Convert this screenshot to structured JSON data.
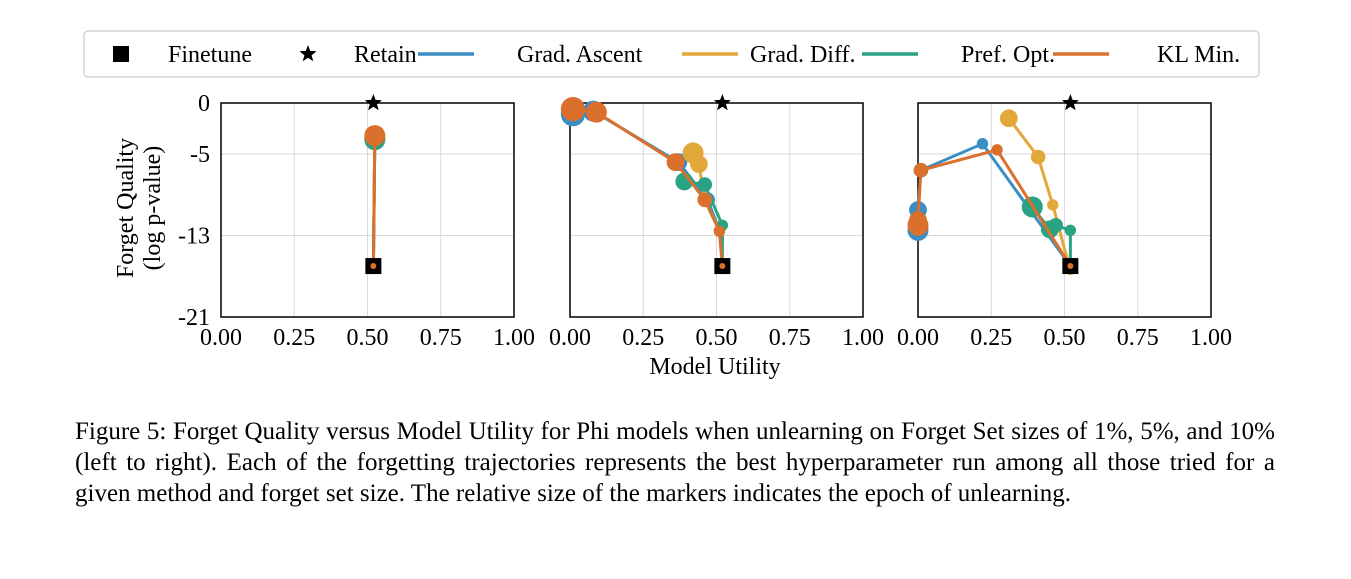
{
  "legend": [
    {
      "label": "Finetune",
      "marker": "square",
      "color": "#000000"
    },
    {
      "label": "Retain",
      "marker": "star",
      "color": "#000000"
    },
    {
      "label": "Grad. Ascent",
      "marker": "line",
      "color": "#3a8ec4"
    },
    {
      "label": "Grad. Diff.",
      "marker": "line",
      "color": "#e2a93a"
    },
    {
      "label": "Pref. Opt.",
      "marker": "line",
      "color": "#2aa382"
    },
    {
      "label": "KL Min.",
      "marker": "line",
      "color": "#db6f2c"
    }
  ],
  "axes": {
    "ylabel_line1": "Forget Quality",
    "ylabel_line2": "(log p-value)",
    "xlabel": "Model Utility",
    "xticks": [
      "0.00",
      "0.25",
      "0.50",
      "0.75",
      "1.00"
    ],
    "yticks": [
      "0",
      "-5",
      "-13",
      "-21"
    ]
  },
  "caption": "Figure 5: Forget Quality versus Model Utility for Phi models when unlearning on Forget Set sizes of 1%, 5%, and 10% (left to right). Each of the forgetting trajectories represents the best hyperparameter run among all those tried for a given method and forget set size. The relative size of the markers indicates the epoch of unlearning.",
  "chart_data": [
    {
      "type": "scatter",
      "panel": "1% forget set",
      "xlabel": "Model Utility",
      "ylabel": "Forget Quality (log p-value)",
      "xlim": [
        0,
        1
      ],
      "ylim": [
        -21,
        0
      ],
      "grid": true,
      "finetune": {
        "x": 0.52,
        "y": -16
      },
      "retain": {
        "x": 0.52,
        "y": 0
      },
      "series": [
        {
          "name": "Grad. Ascent",
          "points": [
            {
              "x": 0.52,
              "y": -16,
              "epoch": 1
            },
            {
              "x": 0.525,
              "y": -3.5,
              "epoch": 5
            }
          ]
        },
        {
          "name": "Grad. Diff.",
          "points": [
            {
              "x": 0.52,
              "y": -16,
              "epoch": 1
            },
            {
              "x": 0.525,
              "y": -3.5,
              "epoch": 5
            }
          ]
        },
        {
          "name": "Pref. Opt.",
          "points": [
            {
              "x": 0.52,
              "y": -16,
              "epoch": 1
            },
            {
              "x": 0.525,
              "y": -3.6,
              "epoch": 5
            }
          ]
        },
        {
          "name": "KL Min.",
          "points": [
            {
              "x": 0.52,
              "y": -16,
              "epoch": 1
            },
            {
              "x": 0.525,
              "y": -3.2,
              "epoch": 5
            }
          ]
        }
      ]
    },
    {
      "type": "scatter",
      "panel": "5% forget set",
      "xlabel": "Model Utility",
      "ylabel": "Forget Quality (log p-value)",
      "xlim": [
        0,
        1
      ],
      "ylim": [
        -21,
        0
      ],
      "grid": true,
      "finetune": {
        "x": 0.52,
        "y": -16
      },
      "retain": {
        "x": 0.52,
        "y": 0
      },
      "series": [
        {
          "name": "Grad. Ascent",
          "points": [
            {
              "x": 0.52,
              "y": -16,
              "epoch": 1
            },
            {
              "x": 0.51,
              "y": -12.5,
              "epoch": 2
            },
            {
              "x": 0.47,
              "y": -9.5,
              "epoch": 3
            },
            {
              "x": 0.37,
              "y": -5.8,
              "epoch": 4
            },
            {
              "x": 0.08,
              "y": -0.8,
              "epoch": 5
            },
            {
              "x": 0.01,
              "y": -1.1,
              "epoch": 6
            }
          ]
        },
        {
          "name": "Grad. Diff.",
          "points": [
            {
              "x": 0.52,
              "y": -16,
              "epoch": 1
            },
            {
              "x": 0.51,
              "y": -12.5,
              "epoch": 2
            },
            {
              "x": 0.46,
              "y": -9.5,
              "epoch": 3
            },
            {
              "x": 0.44,
              "y": -6.0,
              "epoch": 4
            },
            {
              "x": 0.42,
              "y": -4.9,
              "epoch": 5
            }
          ]
        },
        {
          "name": "Pref. Opt.",
          "points": [
            {
              "x": 0.52,
              "y": -16,
              "epoch": 1
            },
            {
              "x": 0.52,
              "y": -12.0,
              "epoch": 2
            },
            {
              "x": 0.46,
              "y": -8.0,
              "epoch": 3
            },
            {
              "x": 0.39,
              "y": -7.7,
              "epoch": 4
            }
          ]
        },
        {
          "name": "KL Min.",
          "points": [
            {
              "x": 0.52,
              "y": -16,
              "epoch": 1
            },
            {
              "x": 0.51,
              "y": -12.6,
              "epoch": 2
            },
            {
              "x": 0.46,
              "y": -9.5,
              "epoch": 3
            },
            {
              "x": 0.36,
              "y": -5.8,
              "epoch": 4
            },
            {
              "x": 0.09,
              "y": -0.9,
              "epoch": 5
            },
            {
              "x": 0.01,
              "y": -0.6,
              "epoch": 6
            }
          ]
        }
      ]
    },
    {
      "type": "scatter",
      "panel": "10% forget set",
      "xlabel": "Model Utility",
      "ylabel": "Forget Quality (log p-value)",
      "xlim": [
        0,
        1
      ],
      "ylim": [
        -21,
        0
      ],
      "grid": true,
      "finetune": {
        "x": 0.52,
        "y": -16
      },
      "retain": {
        "x": 0.52,
        "y": 0
      },
      "series": [
        {
          "name": "Grad. Ascent",
          "points": [
            {
              "x": 0.52,
              "y": -16,
              "epoch": 1
            },
            {
              "x": 0.22,
              "y": -4.0,
              "epoch": 2
            },
            {
              "x": 0.01,
              "y": -6.6,
              "epoch": 3
            },
            {
              "x": 0.0,
              "y": -10.5,
              "epoch": 4
            },
            {
              "x": 0.0,
              "y": -12.5,
              "epoch": 5
            }
          ]
        },
        {
          "name": "Grad. Diff.",
          "points": [
            {
              "x": 0.52,
              "y": -16.5,
              "epoch": 1
            },
            {
              "x": 0.46,
              "y": -10.0,
              "epoch": 2
            },
            {
              "x": 0.41,
              "y": -5.3,
              "epoch": 3
            },
            {
              "x": 0.31,
              "y": -1.5,
              "epoch": 4
            }
          ]
        },
        {
          "name": "Pref. Opt.",
          "points": [
            {
              "x": 0.52,
              "y": -16,
              "epoch": 1
            },
            {
              "x": 0.52,
              "y": -12.5,
              "epoch": 2
            },
            {
              "x": 0.47,
              "y": -12.0,
              "epoch": 3
            },
            {
              "x": 0.45,
              "y": -12.4,
              "epoch": 4
            },
            {
              "x": 0.39,
              "y": -10.2,
              "epoch": 5
            }
          ]
        },
        {
          "name": "KL Min.",
          "points": [
            {
              "x": 0.52,
              "y": -16,
              "epoch": 1
            },
            {
              "x": 0.27,
              "y": -4.6,
              "epoch": 2
            },
            {
              "x": 0.01,
              "y": -6.6,
              "epoch": 3
            },
            {
              "x": 0.0,
              "y": -11.5,
              "epoch": 4
            },
            {
              "x": 0.0,
              "y": -12.0,
              "epoch": 5
            }
          ]
        }
      ]
    }
  ]
}
